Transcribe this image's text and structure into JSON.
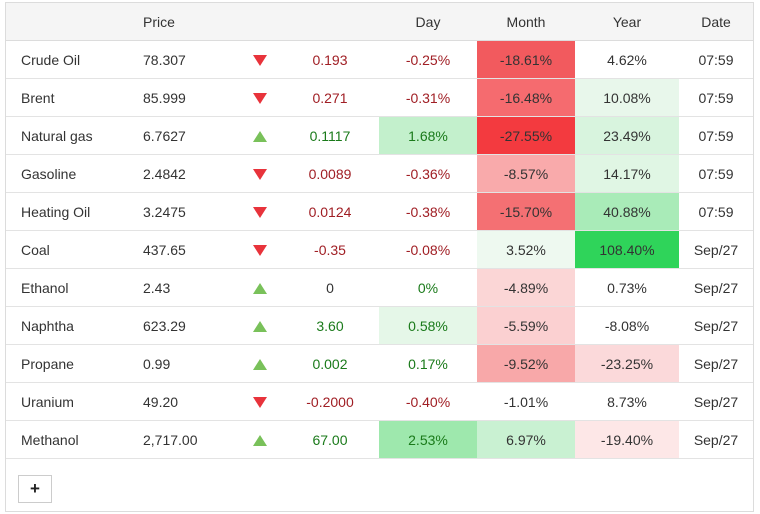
{
  "headers": {
    "name": "",
    "price": "Price",
    "arrow": "",
    "change": "",
    "day": "Day",
    "month": "Month",
    "year": "Year",
    "date": "Date"
  },
  "rows": [
    {
      "name": "Crude Oil",
      "price": "78.307",
      "direction": "down",
      "change": "0.193",
      "day": "-0.25%",
      "month": "-18.61%",
      "year": "4.62%",
      "date": "07:59",
      "day_bg": "",
      "month_bg": "#f25a5e",
      "year_bg": ""
    },
    {
      "name": "Brent",
      "price": "85.999",
      "direction": "down",
      "change": "0.271",
      "day": "-0.31%",
      "month": "-16.48%",
      "year": "10.08%",
      "date": "07:59",
      "day_bg": "",
      "month_bg": "#f56b6f",
      "year_bg": "#e8f7eb"
    },
    {
      "name": "Natural gas",
      "price": "6.7627",
      "direction": "up",
      "change": "0.1117",
      "day": "1.68%",
      "month": "-27.55%",
      "year": "23.49%",
      "date": "07:59",
      "day_bg": "#c3f0cc",
      "month_bg": "#f33a3f",
      "year_bg": "#d8f4de"
    },
    {
      "name": "Gasoline",
      "price": "2.4842",
      "direction": "down",
      "change": "0.0089",
      "day": "-0.36%",
      "month": "-8.57%",
      "year": "14.17%",
      "date": "07:59",
      "day_bg": "",
      "month_bg": "#f9aaab",
      "year_bg": "#e0f6e4"
    },
    {
      "name": "Heating Oil",
      "price": "3.2475",
      "direction": "down",
      "change": "0.0124",
      "day": "-0.38%",
      "month": "-15.70%",
      "year": "40.88%",
      "date": "07:59",
      "day_bg": "",
      "month_bg": "#f47073",
      "year_bg": "#a9ebb8"
    },
    {
      "name": "Coal",
      "price": "437.65",
      "direction": "down",
      "change": "-0.35",
      "day": "-0.08%",
      "month": "3.52%",
      "year": "108.40%",
      "date": "Sep/27",
      "day_bg": "",
      "month_bg": "#eef9f0",
      "year_bg": "#2fd45a"
    },
    {
      "name": "Ethanol",
      "price": "2.43",
      "direction": "up",
      "change": "0",
      "day": "0%",
      "month": "-4.89%",
      "year": "0.73%",
      "date": "Sep/27",
      "day_bg": "",
      "month_bg": "#fbd6d6",
      "year_bg": ""
    },
    {
      "name": "Naphtha",
      "price": "623.29",
      "direction": "up",
      "change": "3.60",
      "day": "0.58%",
      "month": "-5.59%",
      "year": "-8.08%",
      "date": "Sep/27",
      "day_bg": "#e5f7e8",
      "month_bg": "#fbd0d1",
      "year_bg": ""
    },
    {
      "name": "Propane",
      "price": "0.99",
      "direction": "up",
      "change": "0.002",
      "day": "0.17%",
      "month": "-9.52%",
      "year": "-23.25%",
      "date": "Sep/27",
      "day_bg": "",
      "month_bg": "#f8a8a9",
      "year_bg": "#fbd9da"
    },
    {
      "name": "Uranium",
      "price": "49.20",
      "direction": "down",
      "change": "-0.2000",
      "day": "-0.40%",
      "month": "-1.01%",
      "year": "8.73%",
      "date": "Sep/27",
      "day_bg": "",
      "month_bg": "",
      "year_bg": ""
    },
    {
      "name": "Methanol",
      "price": "2,717.00",
      "direction": "up",
      "change": "67.00",
      "day": "2.53%",
      "month": "6.97%",
      "year": "-19.40%",
      "date": "Sep/27",
      "day_bg": "#9ee8ad",
      "month_bg": "#c9f1d2",
      "year_bg": "#fde7e7"
    }
  ],
  "add_button": {
    "label": "+"
  }
}
